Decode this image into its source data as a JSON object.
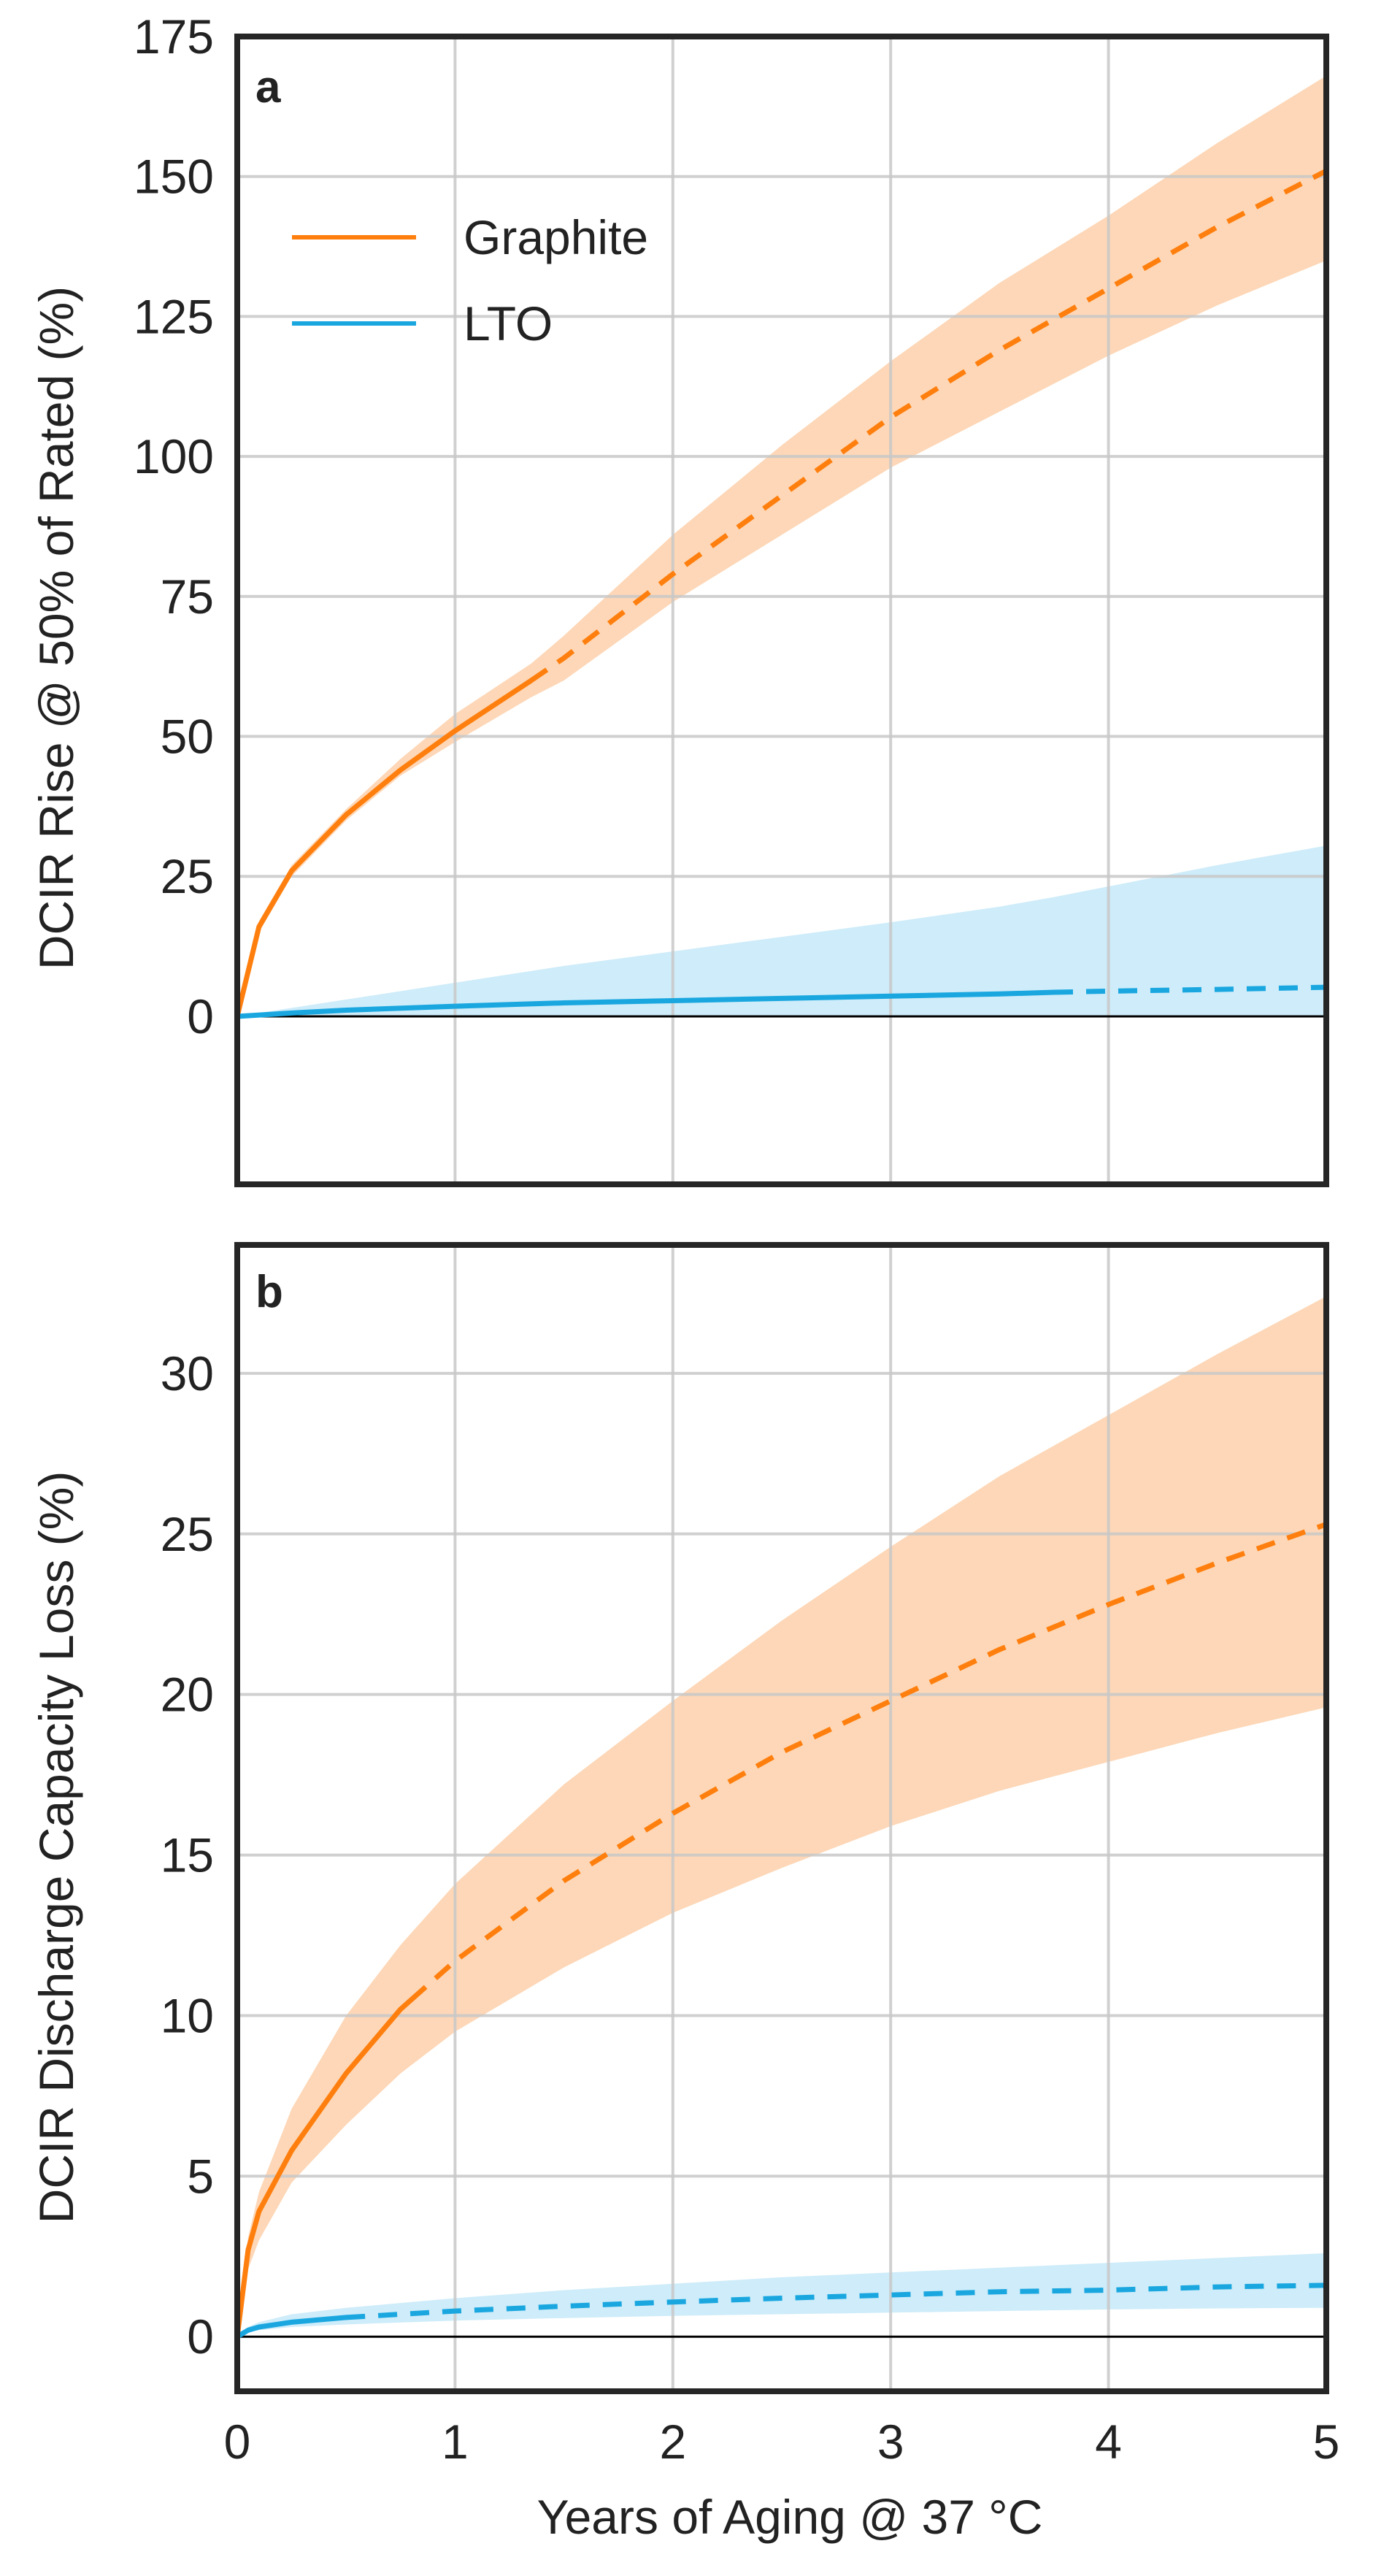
{
  "chart_data": [
    {
      "id": "a",
      "panel_label": "a",
      "type": "line",
      "ylabel": "DCIR Rise @ 50% of Rated (%)",
      "xlabel": "",
      "xlim": [
        0,
        5
      ],
      "ylim": [
        -30,
        175
      ],
      "xticks": [
        0,
        1,
        2,
        3,
        4,
        5
      ],
      "yticks": [
        0,
        25,
        50,
        75,
        100,
        125,
        150,
        175
      ],
      "show_xtick_labels": false,
      "grid": true,
      "legend": {
        "position": "top-left",
        "entries": [
          "Graphite",
          "LTO"
        ]
      },
      "series": [
        {
          "name": "Graphite",
          "color": "#FF7F0E",
          "fill": "#FDD0AA",
          "x": [
            0,
            0.1,
            0.25,
            0.5,
            0.75,
            1,
            1.35,
            1.5,
            2,
            2.5,
            3,
            3.5,
            4,
            4.5,
            5
          ],
          "y": [
            0,
            16,
            26,
            36,
            44,
            51,
            60,
            64,
            79,
            93,
            107,
            119,
            130,
            141,
            151
          ],
          "y_lower": [
            0,
            15,
            25,
            35,
            43,
            49,
            57,
            60,
            74,
            86,
            98,
            108,
            118,
            127,
            135
          ],
          "y_upper": [
            0,
            17,
            27,
            37,
            46,
            54,
            63,
            68,
            86,
            102,
            117,
            131,
            143,
            156,
            168
          ],
          "solid_until_x": 1.35
        },
        {
          "name": "LTO",
          "color": "#1AA7E0",
          "fill": "#C6E9F8",
          "x": [
            0,
            0.25,
            0.5,
            1,
            1.5,
            2,
            2.5,
            3,
            3.5,
            3.75,
            4,
            4.5,
            5
          ],
          "y": [
            0,
            0.6,
            1.1,
            1.8,
            2.4,
            2.8,
            3.2,
            3.6,
            4.0,
            4.3,
            4.5,
            4.8,
            5.2
          ],
          "y_lower": [
            0,
            0,
            0,
            0,
            0,
            0,
            0,
            0,
            0,
            0,
            0,
            0,
            0
          ],
          "y_upper": [
            0,
            1.5,
            3,
            6,
            9,
            11.6,
            14.2,
            16.8,
            19.6,
            21.3,
            23.2,
            27,
            30.5
          ],
          "solid_until_x": 3.75
        }
      ]
    },
    {
      "id": "b",
      "panel_label": "b",
      "type": "line",
      "ylabel": "DCIR Discharge Capacity Loss (%)",
      "xlabel": "Years of Aging @ 37 °C",
      "xlim": [
        0,
        5
      ],
      "ylim": [
        -1.7,
        34
      ],
      "xticks": [
        0,
        1,
        2,
        3,
        4,
        5
      ],
      "yticks": [
        0,
        5,
        10,
        15,
        20,
        25,
        30
      ],
      "show_xtick_labels": true,
      "grid": true,
      "series": [
        {
          "name": "Graphite",
          "color": "#FF7F0E",
          "fill": "#FDD0AA",
          "x": [
            0,
            0.05,
            0.1,
            0.25,
            0.5,
            0.75,
            1,
            1.5,
            2,
            2.5,
            3,
            3.5,
            4,
            4.5,
            5
          ],
          "y": [
            0,
            2.7,
            3.9,
            5.8,
            8.2,
            10.2,
            11.7,
            14.2,
            16.3,
            18.2,
            19.8,
            21.4,
            22.8,
            24.1,
            25.3
          ],
          "y_lower": [
            0,
            2.1,
            3.0,
            4.8,
            6.6,
            8.2,
            9.5,
            11.5,
            13.2,
            14.6,
            15.9,
            17.0,
            17.9,
            18.8,
            19.6
          ],
          "y_upper": [
            0,
            3.1,
            4.5,
            7.1,
            10.0,
            12.2,
            14.1,
            17.2,
            19.8,
            22.3,
            24.6,
            26.8,
            28.7,
            30.6,
            32.4
          ],
          "solid_until_x": 0.8
        },
        {
          "name": "LTO",
          "color": "#1AA7E0",
          "fill": "#C6E9F8",
          "x": [
            0,
            0.05,
            0.1,
            0.25,
            0.5,
            1,
            1.5,
            2,
            2.5,
            3,
            3.5,
            4,
            4.5,
            5
          ],
          "y": [
            0,
            0.2,
            0.3,
            0.45,
            0.6,
            0.8,
            0.95,
            1.08,
            1.2,
            1.3,
            1.4,
            1.45,
            1.55,
            1.6
          ],
          "y_lower": [
            0,
            0.15,
            0.2,
            0.3,
            0.38,
            0.5,
            0.58,
            0.65,
            0.7,
            0.75,
            0.8,
            0.85,
            0.88,
            0.9
          ],
          "y_upper": [
            0,
            0.3,
            0.45,
            0.7,
            0.9,
            1.2,
            1.45,
            1.65,
            1.85,
            2.0,
            2.15,
            2.3,
            2.45,
            2.6
          ],
          "solid_until_x": 0.5
        }
      ]
    }
  ]
}
